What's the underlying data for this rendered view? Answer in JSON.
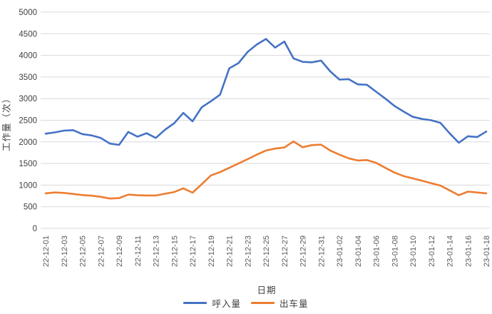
{
  "chart_data": {
    "type": "line",
    "title": "",
    "xlabel": "日期",
    "ylabel": "工作量（次）",
    "ylim": [
      0,
      5000
    ],
    "yticks": [
      0,
      500,
      1000,
      1500,
      2000,
      2500,
      3000,
      3500,
      4000,
      4500,
      5000
    ],
    "grid": true,
    "legend_position": "bottom",
    "x_tick_labels_shown": [
      "22-12-01",
      "22-12-03",
      "22-12-05",
      "22-12-07",
      "22-12-09",
      "22-12-11",
      "22-12-13",
      "22-12-15",
      "22-12-17",
      "22-12-19",
      "22-12-21",
      "22-12-23",
      "22-12-25",
      "22-12-27",
      "22-12-29",
      "22-12-31",
      "23-01-02",
      "23-01-04",
      "23-01-06",
      "23-01-08",
      "23-01-10",
      "23-01-12",
      "23-01-14",
      "23-01-16",
      "23-01-18"
    ],
    "x": [
      "22-12-01",
      "22-12-02",
      "22-12-03",
      "22-12-04",
      "22-12-05",
      "22-12-06",
      "22-12-07",
      "22-12-08",
      "22-12-09",
      "22-12-10",
      "22-12-11",
      "22-12-12",
      "22-12-13",
      "22-12-14",
      "22-12-15",
      "22-12-16",
      "22-12-17",
      "22-12-18",
      "22-12-19",
      "22-12-20",
      "22-12-21",
      "22-12-22",
      "22-12-23",
      "22-12-24",
      "22-12-25",
      "22-12-26",
      "22-12-27",
      "22-12-28",
      "22-12-29",
      "22-12-30",
      "22-12-31",
      "23-01-01",
      "23-01-02",
      "23-01-03",
      "23-01-04",
      "23-01-05",
      "23-01-06",
      "23-01-07",
      "23-01-08",
      "23-01-09",
      "23-01-10",
      "23-01-11",
      "23-01-12",
      "23-01-13",
      "23-01-14",
      "23-01-15",
      "23-01-16",
      "23-01-17",
      "23-01-18"
    ],
    "series": [
      {
        "name": "呼入量",
        "color": "#4472C4",
        "values": [
          2190,
          2220,
          2260,
          2270,
          2180,
          2150,
          2090,
          1960,
          1930,
          2230,
          2120,
          2200,
          2090,
          2280,
          2430,
          2670,
          2475,
          2800,
          2940,
          3090,
          3700,
          3820,
          4080,
          4250,
          4380,
          4180,
          4320,
          3930,
          3850,
          3840,
          3880,
          3630,
          3440,
          3450,
          3330,
          3320,
          3160,
          3000,
          2830,
          2700,
          2580,
          2530,
          2500,
          2440,
          2200,
          1980,
          2130,
          2110,
          2240
        ]
      },
      {
        "name": "出车量",
        "color": "#ED7D31",
        "values": [
          810,
          830,
          820,
          795,
          770,
          755,
          730,
          690,
          700,
          780,
          765,
          760,
          760,
          800,
          840,
          925,
          825,
          1020,
          1225,
          1300,
          1400,
          1500,
          1600,
          1705,
          1800,
          1845,
          1870,
          2010,
          1875,
          1925,
          1935,
          1800,
          1705,
          1620,
          1570,
          1580,
          1515,
          1400,
          1290,
          1210,
          1155,
          1100,
          1045,
          990,
          880,
          765,
          850,
          830,
          810
        ]
      }
    ]
  },
  "colors": {
    "background": "#FFFFFF",
    "gridline": "#D9D9D9",
    "y_tick_text": "#404040",
    "x_tick_text": "#595959",
    "title_text": "#404040"
  }
}
